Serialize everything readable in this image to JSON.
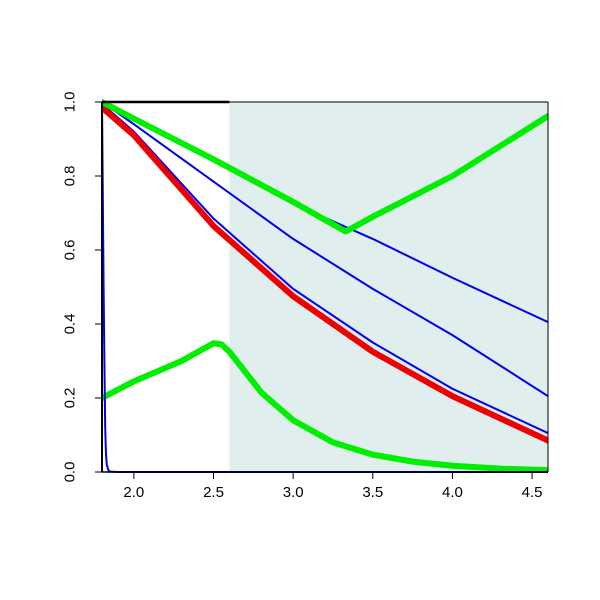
{
  "chart_data": {
    "type": "line",
    "title": "",
    "xlabel": "",
    "ylabel": "",
    "xlim": [
      1.8,
      4.6
    ],
    "ylim": [
      0,
      1
    ],
    "x_ticks": [
      2.0,
      2.5,
      3.0,
      3.5,
      4.0,
      4.5
    ],
    "x_tick_labels": [
      "2.0",
      "2.5",
      "3.0",
      "3.5",
      "4.0",
      "4.5"
    ],
    "y_ticks": [
      0.0,
      0.2,
      0.4,
      0.6,
      0.8,
      1.0
    ],
    "y_tick_labels": [
      "0.0",
      "0.2",
      "0.4",
      "0.6",
      "0.8",
      "1.0"
    ],
    "grid": false,
    "shaded_region": {
      "x_from": 2.6,
      "x_to": 4.6,
      "color": "#e0eeee"
    },
    "series": [
      {
        "color": "#0000ee",
        "width": "thin",
        "x": [
          1.8,
          2.0,
          2.5,
          3.0,
          3.3,
          3.5,
          4.0,
          4.6
        ],
        "y": [
          1.0,
          0.955,
          0.84,
          0.725,
          0.668,
          0.63,
          0.525,
          0.405
        ]
      },
      {
        "color": "#0000ee",
        "width": "thin",
        "x": [
          1.8,
          2.0,
          2.5,
          3.0,
          3.5,
          4.0,
          4.6
        ],
        "y": [
          1.0,
          0.94,
          0.785,
          0.63,
          0.495,
          0.37,
          0.205
        ]
      },
      {
        "color": "#0000ee",
        "width": "thin",
        "x": [
          1.8,
          2.0,
          2.5,
          3.0,
          3.5,
          4.0,
          4.6
        ],
        "y": [
          0.995,
          0.92,
          0.685,
          0.495,
          0.35,
          0.225,
          0.105
        ]
      },
      {
        "color": "#ee0000",
        "width": "thick",
        "x": [
          1.8,
          2.0,
          2.5,
          3.0,
          3.5,
          4.0,
          4.6
        ],
        "y": [
          0.985,
          0.91,
          0.665,
          0.475,
          0.325,
          0.205,
          0.085
        ]
      },
      {
        "color": "#00ee00",
        "width": "thick",
        "x": [
          1.8,
          2.0,
          2.5,
          3.0,
          3.33,
          3.5,
          4.0,
          4.6
        ],
        "y": [
          1.0,
          0.955,
          0.845,
          0.73,
          0.65,
          0.69,
          0.8,
          0.962
        ]
      },
      {
        "color": "#00ee00",
        "width": "thick",
        "x": [
          1.8,
          2.0,
          2.3,
          2.5,
          2.55,
          2.6,
          2.7,
          2.8,
          3.0,
          3.25,
          3.5,
          3.75,
          4.0,
          4.3,
          4.6
        ],
        "y": [
          0.2,
          0.245,
          0.3,
          0.348,
          0.345,
          0.325,
          0.27,
          0.215,
          0.14,
          0.08,
          0.047,
          0.028,
          0.017,
          0.009,
          0.005
        ]
      },
      {
        "color": "#0000ee",
        "width": "thin",
        "x": [
          1.8,
          1.81,
          1.815,
          1.82,
          1.825,
          1.83,
          1.84,
          1.85,
          1.9,
          2.0,
          3.0,
          4.6
        ],
        "y": [
          1.0,
          0.5,
          0.3,
          0.12,
          0.05,
          0.02,
          0.005,
          0.001,
          0.0,
          0.0,
          0.0,
          0.0
        ]
      }
    ]
  }
}
